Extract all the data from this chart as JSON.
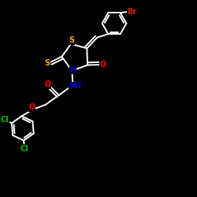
{
  "bg_color": "#000000",
  "bond_color": "#ffffff",
  "S_color": "#ffa500",
  "N_color": "#0000cc",
  "O_color": "#ff0000",
  "Cl_color": "#00bb00",
  "Br_color": "#cc2200",
  "figsize": [
    2.5,
    2.5
  ],
  "dpi": 100,
  "xlim": [
    0,
    10
  ],
  "ylim": [
    0,
    10
  ]
}
